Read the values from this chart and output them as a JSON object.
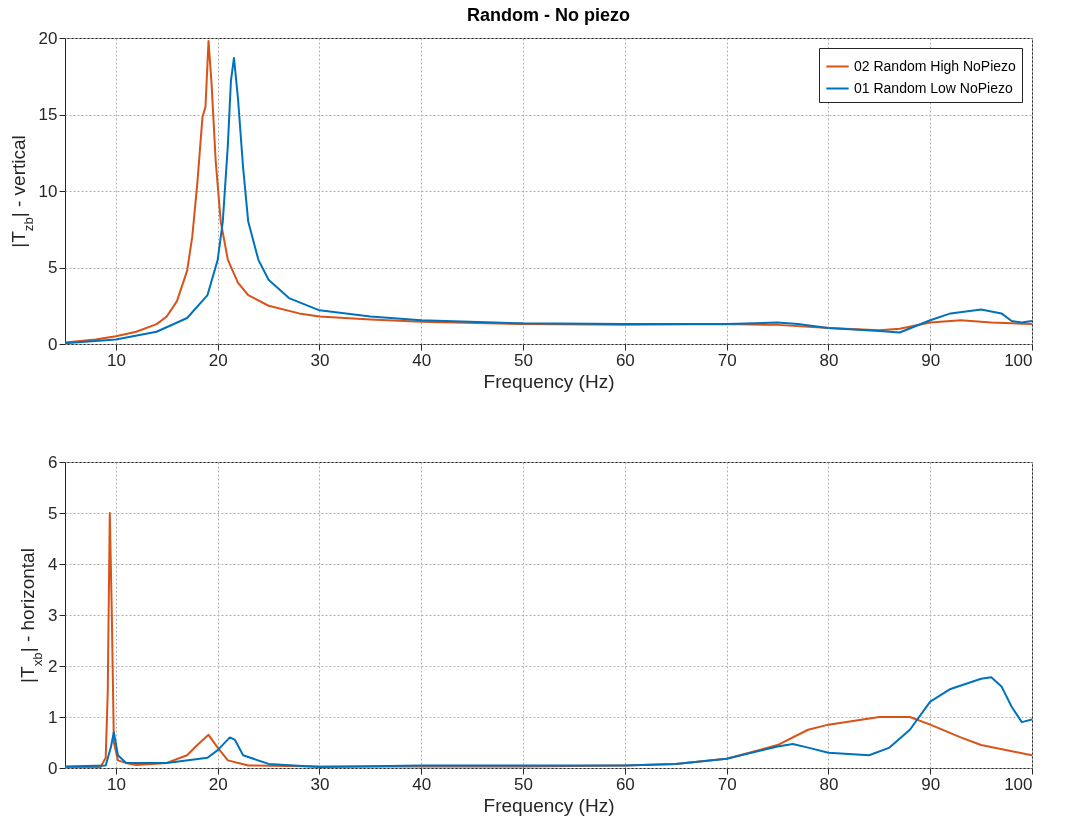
{
  "chart_data": [
    {
      "type": "line",
      "title": "Random - No piezo",
      "xlabel": "Frequency (Hz)",
      "ylabel": "|T$_{zb}$| - vertical",
      "xlim": [
        5,
        100
      ],
      "xticks": [
        10,
        20,
        30,
        40,
        50,
        60,
        70,
        80,
        90,
        100
      ],
      "ylim": [
        0,
        20
      ],
      "yticks": [
        0,
        5,
        10,
        15,
        20
      ],
      "grid": true,
      "legend": "top right",
      "series": [
        {
          "name": "02 Random High NoPiezo",
          "color": "#d95319",
          "x": [
            5,
            8,
            10,
            12,
            14,
            15,
            16,
            17,
            17.5,
            18,
            18.5,
            18.8,
            19.1,
            19.4,
            19.8,
            20.3,
            21,
            22,
            23,
            25,
            28,
            30,
            35,
            40,
            50,
            60,
            70,
            75,
            80,
            85,
            87,
            90,
            93,
            96,
            100
          ],
          "values": [
            0.1,
            0.3,
            0.5,
            0.8,
            1.3,
            1.8,
            2.8,
            4.8,
            7,
            10.5,
            14.8,
            15.5,
            19.8,
            17,
            12,
            8,
            5.5,
            4,
            3.2,
            2.5,
            2,
            1.8,
            1.6,
            1.45,
            1.3,
            1.25,
            1.3,
            1.25,
            1.05,
            0.9,
            1,
            1.4,
            1.55,
            1.4,
            1.3
          ]
        },
        {
          "name": "01 Random Low NoPiezo",
          "color": "#0072bd",
          "x": [
            5,
            10,
            14,
            17,
            19,
            20,
            20.5,
            21,
            21.3,
            21.6,
            22,
            22.5,
            23,
            24,
            25,
            27,
            30,
            35,
            40,
            50,
            60,
            70,
            75,
            77,
            80,
            85,
            87,
            90,
            92,
            95,
            97,
            98,
            99,
            100
          ],
          "values": [
            0.05,
            0.3,
            0.8,
            1.7,
            3.2,
            5.5,
            8,
            13,
            17.2,
            18.7,
            16,
            11.5,
            8,
            5.5,
            4.2,
            3,
            2.2,
            1.8,
            1.55,
            1.35,
            1.3,
            1.3,
            1.4,
            1.3,
            1.05,
            0.85,
            0.75,
            1.55,
            2,
            2.25,
            2,
            1.5,
            1.4,
            1.5
          ]
        }
      ]
    },
    {
      "type": "line",
      "xlabel": "Frequency (Hz)",
      "ylabel": "|T$_{xb}$| - horizontal",
      "xlim": [
        5,
        100
      ],
      "xticks": [
        10,
        20,
        30,
        40,
        50,
        60,
        70,
        80,
        90,
        100
      ],
      "ylim": [
        0,
        6
      ],
      "yticks": [
        0,
        1,
        2,
        3,
        4,
        5,
        6
      ],
      "grid": true,
      "series": [
        {
          "color": "#d95319",
          "x": [
            5,
            8.5,
            9,
            9.2,
            9.4,
            9.6,
            9.8,
            10.2,
            11,
            12,
            15,
            17,
            18,
            19.1,
            20,
            21,
            23,
            30,
            40,
            50,
            60,
            65,
            70,
            75,
            78,
            80,
            85,
            88,
            90,
            93,
            95,
            100
          ],
          "values": [
            0.02,
            0.02,
            0.2,
            1.5,
            5,
            3,
            0.5,
            0.15,
            0.1,
            0.06,
            0.1,
            0.25,
            0.45,
            0.65,
            0.4,
            0.15,
            0.05,
            0.03,
            0.03,
            0.03,
            0.05,
            0.08,
            0.18,
            0.45,
            0.75,
            0.85,
            1,
            1,
            0.85,
            0.6,
            0.45,
            0.25
          ]
        },
        {
          "color": "#0072bd",
          "x": [
            5,
            9,
            9.5,
            9.8,
            10.2,
            11,
            15,
            19,
            20,
            21.2,
            21.7,
            22.5,
            25,
            30,
            40,
            50,
            60,
            65,
            70,
            75,
            76.5,
            78,
            80,
            84,
            86,
            88,
            90,
            92,
            95,
            96,
            97,
            98,
            99,
            100
          ],
          "values": [
            0.03,
            0.05,
            0.4,
            0.7,
            0.25,
            0.1,
            0.1,
            0.2,
            0.35,
            0.6,
            0.55,
            0.25,
            0.08,
            0.02,
            0.05,
            0.05,
            0.05,
            0.08,
            0.18,
            0.42,
            0.47,
            0.4,
            0.3,
            0.25,
            0.4,
            0.75,
            1.3,
            1.55,
            1.75,
            1.78,
            1.6,
            1.2,
            0.9,
            0.95
          ]
        }
      ]
    }
  ]
}
